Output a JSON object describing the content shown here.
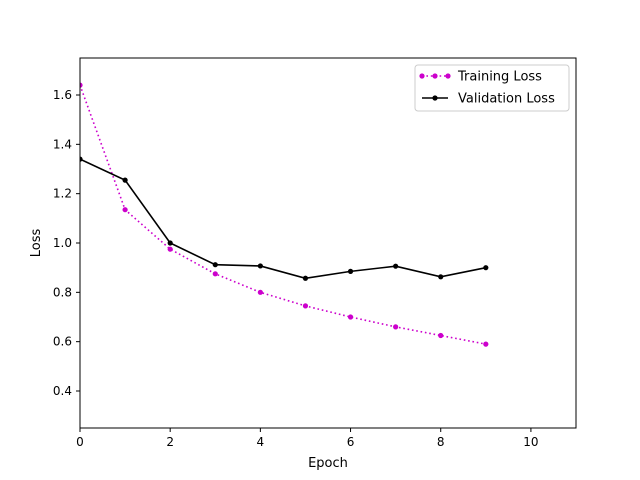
{
  "chart_data": {
    "type": "line",
    "title": "",
    "xlabel": "Epoch",
    "ylabel": "Loss",
    "xlim": [
      0,
      11
    ],
    "ylim": [
      0.25,
      1.75
    ],
    "xticks": [
      0,
      2,
      4,
      6,
      8,
      10
    ],
    "yticks": [
      0.4,
      0.6,
      0.8,
      1.0,
      1.2,
      1.4,
      1.6
    ],
    "xtick_labels": [
      "0",
      "2",
      "4",
      "6",
      "8",
      "10"
    ],
    "ytick_labels": [
      "0.4",
      "0.6",
      "0.8",
      "1.0",
      "1.2",
      "1.4",
      "1.6"
    ],
    "grid": false,
    "legend_position": "top-right",
    "x": [
      0,
      1,
      2,
      3,
      4,
      5,
      6,
      7,
      8,
      9
    ],
    "series": [
      {
        "name": "Training Loss",
        "color": "#cc00cc",
        "style": "dotted",
        "marker": "circle",
        "values": [
          1.64,
          1.135,
          0.975,
          0.875,
          0.8,
          0.745,
          0.7,
          0.66,
          0.625,
          0.59
        ]
      },
      {
        "name": "Validation Loss",
        "color": "#000000",
        "style": "solid",
        "marker": "circle",
        "values": [
          1.34,
          1.255,
          1.0,
          0.912,
          0.907,
          0.857,
          0.885,
          0.906,
          0.863,
          0.9
        ]
      }
    ]
  }
}
